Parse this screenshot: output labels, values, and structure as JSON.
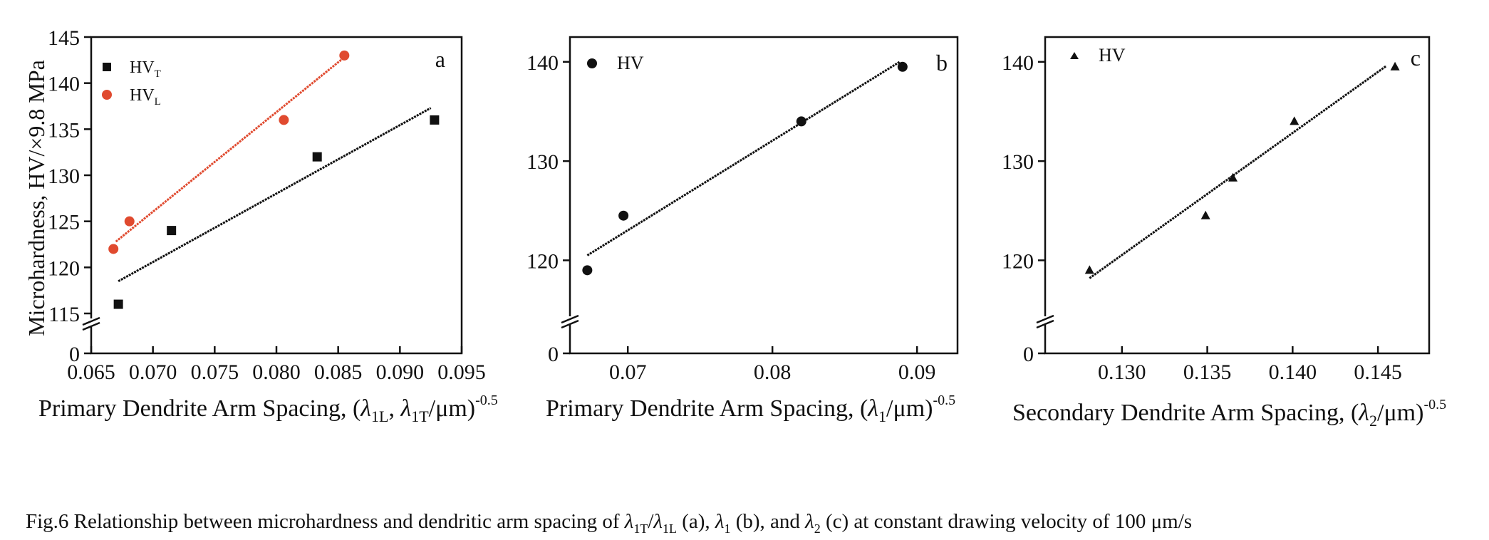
{
  "chart_data": [
    {
      "type": "scatter",
      "panel_label": "a",
      "xlabel": {
        "main": "Primary Dendrite Arm Spacing, (",
        "sym1": "λ",
        "sub1": "1L",
        "mid": ", ",
        "sym2": "λ",
        "sub2": "1T",
        "tail": "/μm)",
        "sup": "-0.5"
      },
      "ylabel": "Microhardness, HV/×9.8 MPa",
      "xlim": [
        0.065,
        0.095
      ],
      "x_ticks": [
        "0.065",
        "0.070",
        "0.075",
        "0.080",
        "0.085",
        "0.090",
        "0.095"
      ],
      "y_break": {
        "below": "0",
        "from": 115
      },
      "ylim": [
        115,
        145
      ],
      "y_ticks": [
        "115",
        "120",
        "125",
        "130",
        "135",
        "140",
        "145"
      ],
      "legend": [
        {
          "base": "HV",
          "sub": "T",
          "marker": "square",
          "color": "#111111"
        },
        {
          "base": "HV",
          "sub": "L",
          "marker": "circle",
          "color": "#e04a2f"
        }
      ],
      "series": [
        {
          "name": "HVT",
          "marker": "square",
          "color": "#111111",
          "points": [
            [
              0.0672,
              116.0
            ],
            [
              0.0715,
              124.0
            ],
            [
              0.0833,
              132.0
            ],
            [
              0.0928,
              136.0
            ]
          ],
          "fit": [
            [
              0.0672,
              118.5
            ],
            [
              0.0925,
              137.3
            ]
          ]
        },
        {
          "name": "HVL",
          "marker": "circle",
          "color": "#e04a2f",
          "points": [
            [
              0.0668,
              122.0
            ],
            [
              0.0681,
              125.0
            ],
            [
              0.0806,
              136.0
            ],
            [
              0.0855,
              143.0
            ]
          ],
          "fit": [
            [
              0.067,
              122.8
            ],
            [
              0.0855,
              142.8
            ]
          ]
        }
      ]
    },
    {
      "type": "scatter",
      "panel_label": "b",
      "xlabel": {
        "main": "Primary Dendrite Arm Spacing, (",
        "sym1": "λ",
        "sub1": "1",
        "tail": "/μm)",
        "sup": "-0.5"
      },
      "xlim": [
        0.066,
        0.0928
      ],
      "x_ticks": [
        "0.07",
        "0.08",
        "0.09"
      ],
      "y_break": {
        "below": "0",
        "from": 114
      },
      "ylim": [
        114,
        142.5
      ],
      "y_ticks": [
        "120",
        "130",
        "140"
      ],
      "legend": [
        {
          "base": "HV",
          "marker": "circle",
          "color": "#111111"
        }
      ],
      "series": [
        {
          "name": "HV",
          "marker": "circle",
          "color": "#111111",
          "points": [
            [
              0.0672,
              119.0
            ],
            [
              0.0697,
              124.5
            ],
            [
              0.082,
              134.0
            ],
            [
              0.089,
              139.5
            ]
          ],
          "fit": [
            [
              0.0672,
              120.5
            ],
            [
              0.0888,
              140.0
            ]
          ]
        }
      ]
    },
    {
      "type": "scatter",
      "panel_label": "c",
      "xlabel": {
        "main": "Secondary Dendrite Arm Spacing, (",
        "sym1": "λ",
        "sub1": "2",
        "tail": "/μm)",
        "sup": "-0.5"
      },
      "xlim": [
        0.1255,
        0.148
      ],
      "x_ticks": [
        "0.130",
        "0.135",
        "0.140",
        "0.145"
      ],
      "y_break": {
        "below": "0",
        "from": 114
      },
      "ylim": [
        114,
        142.5
      ],
      "y_ticks": [
        "120",
        "130",
        "140"
      ],
      "legend": [
        {
          "base": "HV",
          "marker": "triangle",
          "color": "#111111"
        }
      ],
      "series": [
        {
          "name": "HV",
          "marker": "triangle",
          "color": "#111111",
          "points": [
            [
              0.1281,
              119.0
            ],
            [
              0.1349,
              124.5
            ],
            [
              0.1365,
              128.3
            ],
            [
              0.1401,
              134.0
            ],
            [
              0.146,
              139.5
            ]
          ],
          "fit": [
            [
              0.1281,
              118.2
            ],
            [
              0.1455,
              139.6
            ]
          ]
        }
      ]
    }
  ],
  "caption": {
    "t0": "Fig.6    Relationship between microhardness and dendritic arm spacing of ",
    "s1": "λ",
    "b1": "1T",
    "t1": "/",
    "s2": "λ",
    "b2": "1L",
    "t2": " (a), ",
    "s3": "λ",
    "b3": "1",
    "t3": " (b), and ",
    "s4": "λ",
    "b4": "2",
    "t4": " (c) at constant drawing velocity of 100 μm/s"
  }
}
